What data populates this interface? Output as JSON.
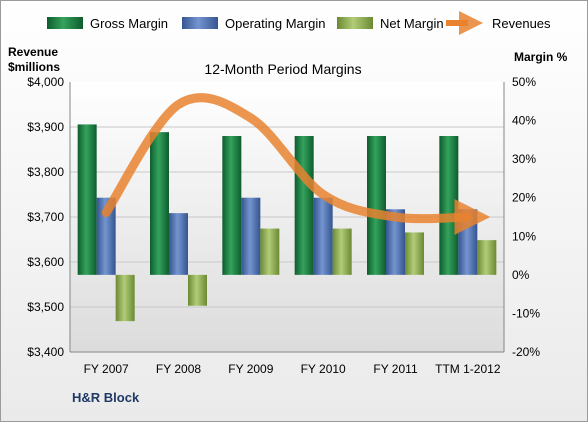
{
  "chart_data": {
    "type": "bar",
    "title": "12-Month Period Margins",
    "company": "H&R Block",
    "y_left_label_line1": "Revenue",
    "y_left_label_line2": "$millions",
    "y_right_label": "Margin %",
    "categories": [
      "FY 2007",
      "FY 2008",
      "FY 2009",
      "FY 2010",
      "FY 2011",
      "TTM 1-2012"
    ],
    "y_left_ticks": [
      "$4,000",
      "$3,900",
      "$3,800",
      "$3,700",
      "$3,600",
      "$3,500",
      "$3,400"
    ],
    "y_right_ticks": [
      "50%",
      "40%",
      "30%",
      "20%",
      "10%",
      "0%",
      "-10%",
      "-20%"
    ],
    "ylim_left": [
      3400,
      4000
    ],
    "ylim_right": [
      -20,
      50
    ],
    "grid": true,
    "legend_position": "top",
    "series": [
      {
        "name": "Gross Margin",
        "axis": "right",
        "color": "#1f7a43",
        "values": [
          39,
          37,
          36,
          36,
          36,
          36
        ]
      },
      {
        "name": "Operating Margin",
        "axis": "right",
        "color": "#4a6fb5",
        "values": [
          20,
          16,
          20,
          20,
          17,
          17
        ]
      },
      {
        "name": "Net Margin",
        "axis": "right",
        "color": "#8fae4e",
        "values": [
          -12,
          -8,
          12,
          12,
          11,
          9
        ]
      },
      {
        "name": "Revenues",
        "axis": "left",
        "type": "line",
        "color": "#e8822f",
        "values": [
          3710,
          3950,
          3920,
          3750,
          3700,
          3700
        ]
      }
    ]
  }
}
